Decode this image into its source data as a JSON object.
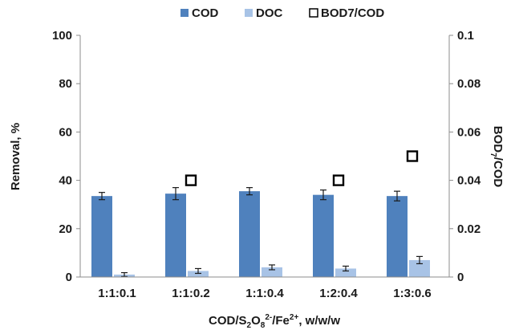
{
  "chart_data": {
    "type": "bar",
    "categories": [
      "1:1:0.1",
      "1:1:0.2",
      "1:1:0.4",
      "1:2:0.4",
      "1:3:0.6"
    ],
    "series": [
      {
        "name": "COD",
        "axis": "left",
        "kind": "bar",
        "color": "#4f81bd",
        "values": [
          33.5,
          34.5,
          35.5,
          34.0,
          33.5
        ],
        "errors": [
          1.5,
          2.5,
          1.5,
          2.0,
          2.0
        ]
      },
      {
        "name": "DOC",
        "axis": "left",
        "kind": "bar",
        "color": "#a8c3e6",
        "values": [
          1.0,
          2.5,
          4.0,
          3.5,
          7.0
        ],
        "errors": [
          0.8,
          1.0,
          1.0,
          1.0,
          1.5
        ]
      },
      {
        "name": "BOD7/COD",
        "axis": "right",
        "kind": "marker",
        "marker": "hollow-square",
        "values": [
          null,
          0.04,
          null,
          0.04,
          0.05
        ]
      }
    ],
    "xlabel_parts": {
      "base": "COD/S",
      "sub1": "2",
      "mid1": "O",
      "sub2": "8",
      "sup1": "2-",
      "mid2": "/Fe",
      "sup2": "2+",
      "tail": ", w/w/w"
    },
    "ylabel_left": "Removal, %",
    "ylabel_right_parts": {
      "base": "BOD",
      "sub": "7",
      "tail": "/COD"
    },
    "ylim_left": [
      0,
      100
    ],
    "yticks_left": [
      "0",
      "20",
      "40",
      "60",
      "80",
      "100"
    ],
    "ylim_right": [
      0,
      0.1
    ],
    "yticks_right": [
      "0",
      "0.02",
      "0.04",
      "0.06",
      "0.08",
      "0.1"
    ],
    "grid": false,
    "legend_position": "top-center"
  }
}
